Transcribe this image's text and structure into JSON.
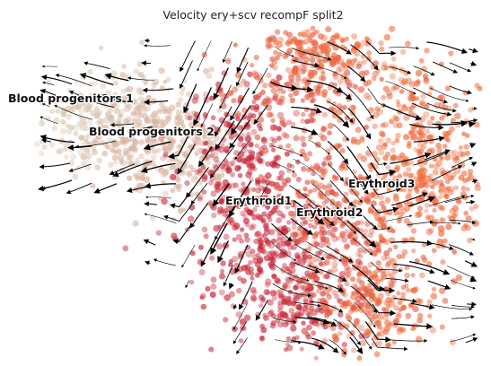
{
  "chart_data": {
    "type": "scatter",
    "title": "Velocity ery+scv recompF split2",
    "axes_visible": false,
    "grid": false,
    "overlay": "velocity stream lines with arrowheads (black)",
    "clusters": [
      {
        "name": "Blood progenitors 1",
        "color": "#dcc8b6"
      },
      {
        "name": "Blood progenitors 2",
        "color": "#d9b3a2"
      },
      {
        "name": "Erythroid1",
        "color": "#c8283a"
      },
      {
        "name": "Erythroid2",
        "color": "#e45a44"
      },
      {
        "name": "Erythroid3",
        "color": "#ef6a3c"
      }
    ]
  }
}
